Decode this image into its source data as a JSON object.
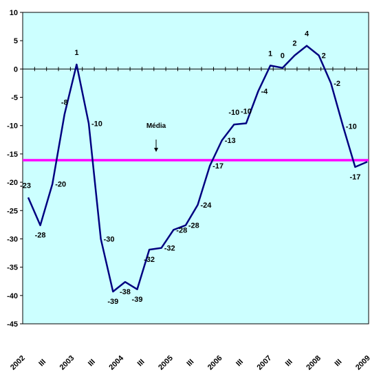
{
  "chart_data": {
    "type": "line",
    "background_color": "#CCFFFF",
    "line_color": "#000080",
    "mean_line_color": "#FF00FF",
    "ylim": [
      -45,
      10
    ],
    "yticks": [
      10,
      5,
      0,
      -5,
      -10,
      -15,
      -20,
      -25,
      -30,
      -35,
      -40,
      -45
    ],
    "x_tick_labels": [
      "2002",
      "III",
      "2003",
      "III",
      "2004",
      "III",
      "2005",
      "III",
      "2006",
      "III",
      "2007",
      "III",
      "2008",
      "III",
      "2009"
    ],
    "series": [
      {
        "values": [
          -23,
          -28,
          -20,
          -8,
          1,
          -10,
          -30,
          -39,
          -38,
          -39,
          -32,
          -32,
          -28,
          -28,
          -24,
          -17,
          -13,
          -10,
          -10,
          -4,
          1,
          0,
          2,
          4,
          2,
          -2,
          -10,
          -17,
          -16
        ],
        "plot_values": [
          -22.7,
          -27.6,
          -20.3,
          -8.0,
          0.8,
          -9.6,
          -30.0,
          -39.3,
          -37.6,
          -38.9,
          -31.9,
          -31.6,
          -28.4,
          -27.6,
          -24.0,
          -17.1,
          -12.6,
          -9.8,
          -9.6,
          -3.9,
          0.6,
          0.2,
          2.4,
          4.1,
          2.4,
          -2.5,
          -10.1,
          -17.3,
          -16.4
        ],
        "label_positions": [
          "left",
          "below",
          "right",
          "above",
          "above",
          "right",
          "right",
          "below",
          "below",
          "below",
          "below",
          "right",
          "right",
          "right",
          "right",
          "right",
          "right",
          "above",
          "above",
          "right",
          "above",
          "above",
          "above",
          "above",
          "right",
          "right",
          "right",
          "below",
          "right"
        ]
      }
    ],
    "mean_value": -16.1,
    "annotation": {
      "text": "Média",
      "arrow": "down"
    }
  }
}
